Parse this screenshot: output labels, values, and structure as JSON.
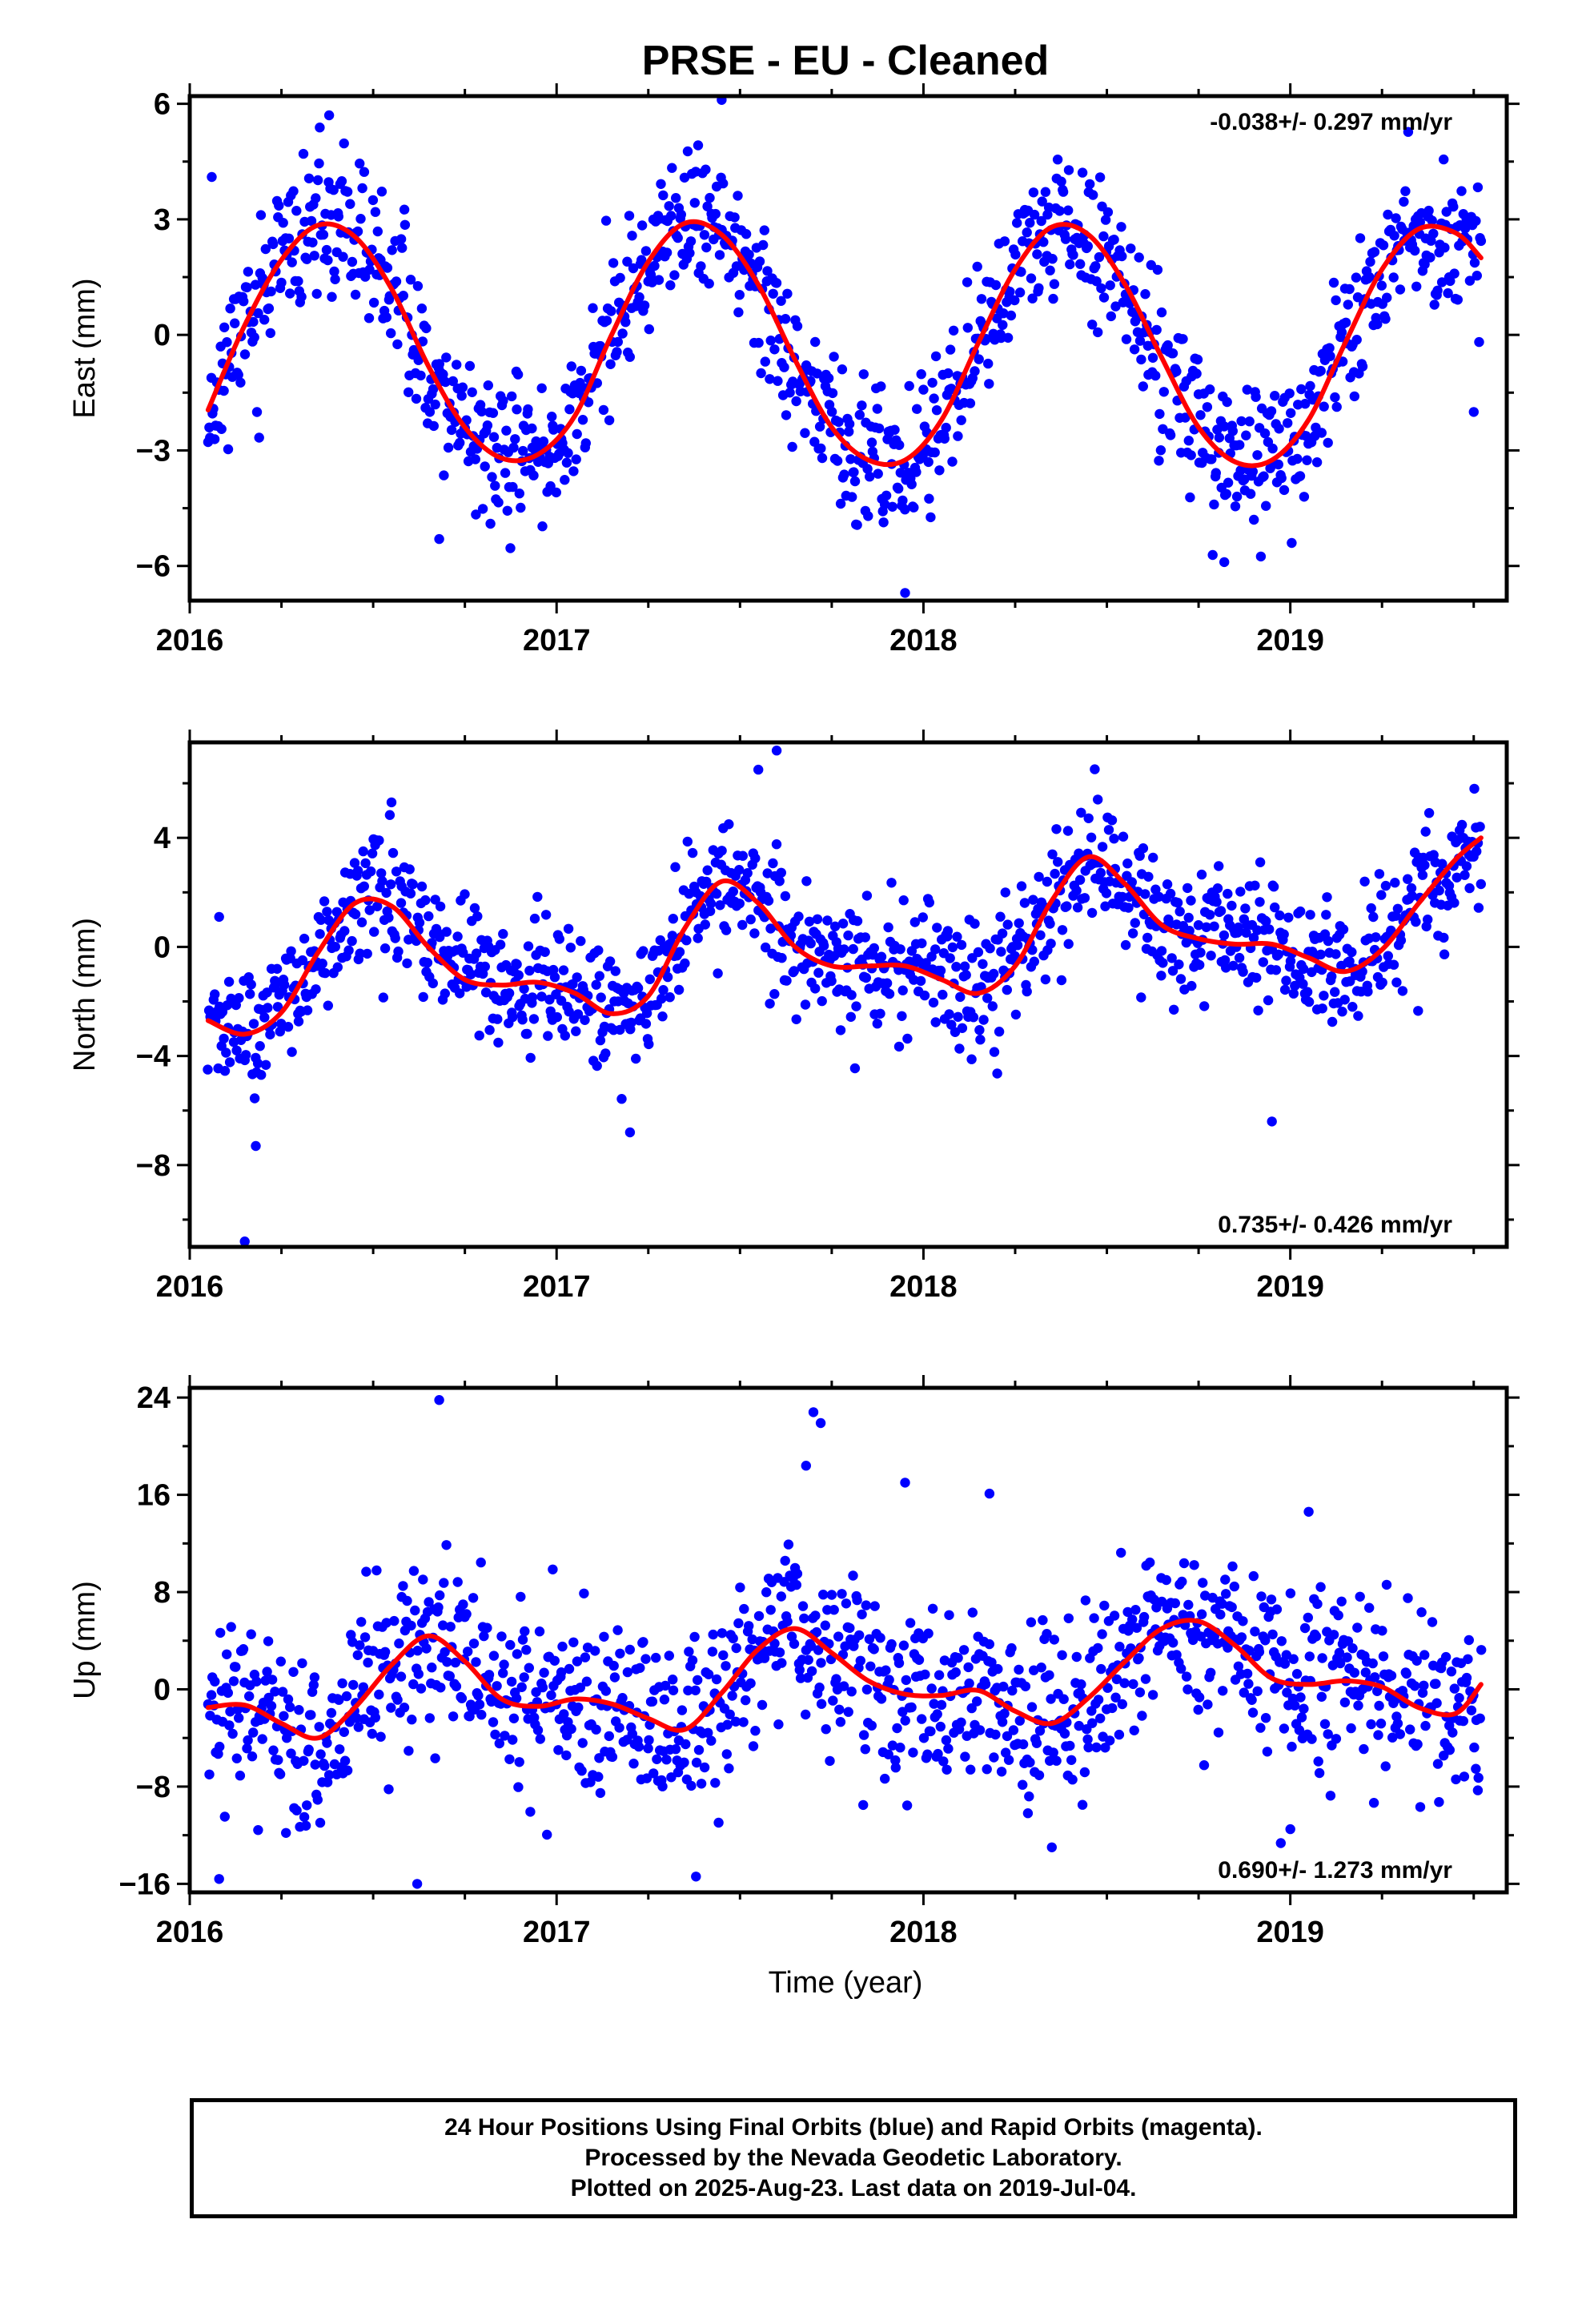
{
  "title": "PRSE  - EU - Cleaned",
  "xlabel": "Time (year)",
  "colors": {
    "final_points": "#0000ff",
    "model_fit": "#ff0000",
    "frame": "#000000"
  },
  "chart_data": [
    {
      "type": "scatter",
      "component": "east",
      "ylabel": "East (mm)",
      "rate_label": "-0.038+/- 0.297 mm/yr",
      "rate_position": "top-right",
      "xlim": [
        2016.0,
        2019.59
      ],
      "ylim": [
        -6.9,
        6.2
      ],
      "xticks": [
        2016,
        2017,
        2018,
        2019
      ],
      "yticks": [
        -6,
        -3,
        0,
        3,
        6
      ],
      "grid": false,
      "model": {
        "name": "seasonal fit",
        "x": [
          2016.05,
          2016.15,
          2016.25,
          2016.35,
          2016.45,
          2016.55,
          2016.65,
          2016.75,
          2016.85,
          2016.95,
          2017.05,
          2017.15,
          2017.25,
          2017.35,
          2017.45,
          2017.55,
          2017.65,
          2017.75,
          2017.85,
          2017.95,
          2018.05,
          2018.15,
          2018.25,
          2018.35,
          2018.45,
          2018.55,
          2018.65,
          2018.75,
          2018.85,
          2018.95,
          2019.05,
          2019.15,
          2019.25,
          2019.35,
          2019.45,
          2019.52
        ],
        "y": [
          -1.95,
          0.25,
          1.95,
          2.85,
          2.55,
          1.2,
          -0.8,
          -2.4,
          -3.2,
          -3.1,
          -2.1,
          0.0,
          1.9,
          2.9,
          2.6,
          1.3,
          -0.65,
          -2.4,
          -3.25,
          -3.25,
          -2.2,
          -0.2,
          1.7,
          2.8,
          2.6,
          1.3,
          -0.6,
          -2.4,
          -3.3,
          -3.25,
          -2.2,
          -0.2,
          1.7,
          2.75,
          2.65,
          2.0
        ]
      },
      "scatter": {
        "name": "daily positions (final orbits)",
        "count": 1150,
        "seed": 11,
        "noise_sd": 0.95,
        "outliers": [
          [
            2016.06,
            4.1
          ],
          [
            2016.38,
            5.7
          ],
          [
            2017.45,
            6.1
          ],
          [
            2017.95,
            -6.7
          ],
          [
            2018.82,
            -5.9
          ],
          [
            2019.5,
            -2.0
          ],
          [
            2016.68,
            -5.3
          ]
        ]
      }
    },
    {
      "type": "scatter",
      "component": "north",
      "ylabel": "North (mm)",
      "rate_label": "0.735+/- 0.426 mm/yr",
      "rate_position": "bottom-right",
      "xlim": [
        2016.0,
        2019.59
      ],
      "ylim": [
        -11.0,
        7.5
      ],
      "xticks": [
        2016,
        2017,
        2018,
        2019
      ],
      "yticks": [
        -8,
        -4,
        0,
        4
      ],
      "grid": false,
      "model": {
        "name": "seasonal fit",
        "x": [
          2016.05,
          2016.15,
          2016.25,
          2016.35,
          2016.45,
          2016.55,
          2016.65,
          2016.75,
          2016.85,
          2016.95,
          2017.05,
          2017.15,
          2017.25,
          2017.35,
          2017.45,
          2017.55,
          2017.65,
          2017.75,
          2017.85,
          2017.95,
          2018.05,
          2018.15,
          2018.25,
          2018.35,
          2018.45,
          2018.55,
          2018.65,
          2018.75,
          2018.85,
          2018.95,
          2019.05,
          2019.15,
          2019.25,
          2019.35,
          2019.45,
          2019.52
        ],
        "y": [
          -2.7,
          -3.2,
          -2.4,
          -0.2,
          1.6,
          1.5,
          0.0,
          -1.2,
          -1.4,
          -1.3,
          -1.7,
          -2.45,
          -1.8,
          0.7,
          2.4,
          1.6,
          0.0,
          -0.7,
          -0.7,
          -0.7,
          -1.2,
          -1.7,
          -0.7,
          1.7,
          3.3,
          2.3,
          0.8,
          0.3,
          0.1,
          0.1,
          -0.4,
          -0.9,
          -0.1,
          1.6,
          3.2,
          4.0
        ]
      },
      "scatter": {
        "name": "daily positions (final orbits)",
        "count": 1150,
        "seed": 23,
        "noise_sd": 1.15,
        "outliers": [
          [
            2016.08,
            1.1
          ],
          [
            2016.18,
            -7.3
          ],
          [
            2016.15,
            -10.8
          ],
          [
            2017.2,
            -6.8
          ],
          [
            2017.55,
            6.5
          ],
          [
            2017.6,
            7.2
          ],
          [
            2018.95,
            -6.4
          ],
          [
            2016.55,
            5.3
          ]
        ]
      }
    },
    {
      "type": "scatter",
      "component": "up",
      "ylabel": "Up (mm)",
      "rate_label": "0.690+/- 1.273 mm/yr",
      "rate_position": "bottom-right",
      "xlim": [
        2016.0,
        2019.59
      ],
      "ylim": [
        -16.7,
        24.8
      ],
      "xticks": [
        2016,
        2017,
        2018,
        2019
      ],
      "yticks": [
        -16,
        -8,
        0,
        8,
        16,
        24
      ],
      "grid": false,
      "model": {
        "name": "seasonal fit",
        "x": [
          2016.05,
          2016.15,
          2016.25,
          2016.35,
          2016.45,
          2016.55,
          2016.65,
          2016.75,
          2016.85,
          2016.95,
          2017.05,
          2017.15,
          2017.25,
          2017.35,
          2017.45,
          2017.55,
          2017.65,
          2017.75,
          2017.85,
          2017.95,
          2018.05,
          2018.15,
          2018.25,
          2018.35,
          2018.45,
          2018.55,
          2018.65,
          2018.75,
          2018.85,
          2018.95,
          2019.05,
          2019.15,
          2019.25,
          2019.35,
          2019.45,
          2019.52
        ],
        "y": [
          -1.5,
          -1.3,
          -2.8,
          -4.0,
          -1.5,
          2.0,
          4.4,
          2.3,
          -0.8,
          -1.4,
          -0.8,
          -1.2,
          -2.4,
          -3.3,
          -0.3,
          3.3,
          5.0,
          3.0,
          0.7,
          -0.4,
          -0.5,
          -0.1,
          -1.8,
          -2.8,
          -0.7,
          2.3,
          5.0,
          5.6,
          3.6,
          0.9,
          0.4,
          0.7,
          0.2,
          -1.5,
          -2.0,
          0.4
        ]
      },
      "scatter": {
        "name": "daily positions (final orbits)",
        "count": 1150,
        "seed": 37,
        "noise_sd": 3.6,
        "outliers": [
          [
            2016.68,
            23.8
          ],
          [
            2017.7,
            22.8
          ],
          [
            2017.72,
            21.9
          ],
          [
            2017.68,
            18.4
          ],
          [
            2017.95,
            17.0
          ],
          [
            2018.18,
            16.1
          ],
          [
            2016.62,
            -16.0
          ],
          [
            2016.08,
            -15.6
          ],
          [
            2017.38,
            -15.4
          ],
          [
            2018.35,
            -13.0
          ],
          [
            2019.0,
            -11.5
          ],
          [
            2019.05,
            14.6
          ]
        ]
      }
    }
  ],
  "footer": {
    "line1": "24 Hour Positions Using Final Orbits (blue) and Rapid Orbits (magenta).",
    "line2": "Processed by the Nevada Geodetic Laboratory.",
    "line3": "Plotted on 2025-Aug-23. Last data on 2019-Jul-04."
  }
}
